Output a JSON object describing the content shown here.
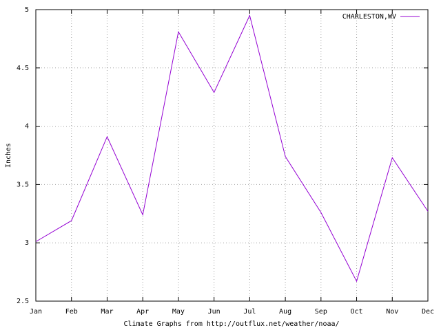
{
  "chart_data": {
    "type": "line",
    "y_label": "Inches",
    "x_label": "Climate Graphs from http://outflux.net/weather/noaa/",
    "categories": [
      "Jan",
      "Feb",
      "Mar",
      "Apr",
      "May",
      "Jun",
      "Jul",
      "Aug",
      "Sep",
      "Oct",
      "Nov",
      "Dec"
    ],
    "series": [
      {
        "name": "CHARLESTON,WV",
        "color": "#9400d3",
        "values": [
          3.01,
          3.19,
          3.91,
          3.24,
          4.81,
          4.29,
          4.95,
          3.74,
          3.26,
          2.67,
          3.73,
          3.27
        ]
      }
    ],
    "ylim": [
      2.5,
      5
    ],
    "yticks": [
      2.5,
      3,
      3.5,
      4,
      4.5,
      5
    ],
    "grid": true,
    "legend": "top-right"
  }
}
